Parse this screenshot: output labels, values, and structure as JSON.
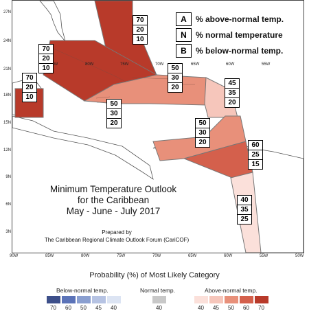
{
  "map": {
    "lat_labels": [
      "27N",
      "24N",
      "21N",
      "18N",
      "15N",
      "12N",
      "9N",
      "6N",
      "3N"
    ],
    "lon_labels": [
      "90W",
      "85W",
      "80W",
      "75W",
      "70W",
      "65W",
      "60W",
      "55W",
      "50W"
    ],
    "inmap_lon_labels": [
      "85W",
      "80W",
      "75W",
      "70W",
      "65W",
      "60W",
      "55W"
    ]
  },
  "regions": [
    {
      "name": "northern-bahamas",
      "above": "70",
      "normal": "20",
      "below": "10",
      "color": "#b83a2a"
    },
    {
      "name": "cuba-bahamas",
      "above": "70",
      "normal": "20",
      "below": "10",
      "color": "#b83a2a"
    },
    {
      "name": "central-america-west",
      "above": "70",
      "normal": "20",
      "below": "10",
      "color": "#b83a2a"
    },
    {
      "name": "greater-antilles-east",
      "above": "50",
      "normal": "30",
      "below": "20",
      "color": "#e8907a"
    },
    {
      "name": "lesser-antilles-north",
      "above": "45",
      "normal": "35",
      "below": "20",
      "color": "#f6c6bb"
    },
    {
      "name": "caribbean-central",
      "above": "50",
      "normal": "30",
      "below": "20",
      "color": "#e8907a"
    },
    {
      "name": "caribbean-southeast",
      "above": "60",
      "normal": "25",
      "below": "15",
      "color": "#d4604c"
    },
    {
      "name": "guianas",
      "above": "40",
      "normal": "35",
      "below": "25",
      "color": "#fbe0da"
    }
  ],
  "legend_key": [
    {
      "letter": "A",
      "text": "% above-normal temp."
    },
    {
      "letter": "N",
      "text": "% normal temperature"
    },
    {
      "letter": "B",
      "text": "% below-normal temp."
    }
  ],
  "title": {
    "line1": "Minimum Temperature Outlook",
    "line2": "for the Caribbean",
    "line3": "May - June - July 2017"
  },
  "credit": {
    "line1": "Prepared by",
    "line2": "The Caribbean Regional Climate Outlook Forum (CariCOF)"
  },
  "colorbar": {
    "caption": "Probability (%) of Most Likely Category",
    "below_label": "Below-normal temp.",
    "normal_label": "Normal temp.",
    "above_label": "Above-normal temp.",
    "below_values": [
      "70",
      "60",
      "50",
      "45",
      "40"
    ],
    "normal_values": [
      "40"
    ],
    "above_values": [
      "40",
      "45",
      "50",
      "60",
      "70"
    ],
    "below_colors": [
      "#3d4f8a",
      "#5b73b8",
      "#8a9fd0",
      "#b6c3e3",
      "#dce4f3"
    ],
    "normal_colors": [
      "#c8c8c8"
    ],
    "above_colors": [
      "#fbe0da",
      "#f6c6bb",
      "#e8907a",
      "#d4604c",
      "#b83a2a"
    ]
  }
}
